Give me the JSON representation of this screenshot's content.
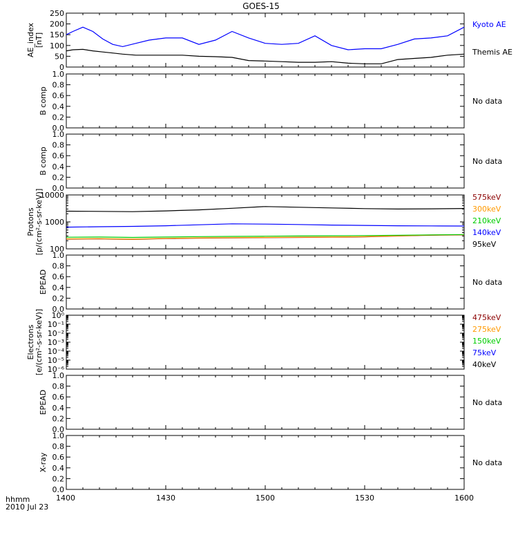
{
  "title": "GOES-15",
  "time_axis": {
    "ticks": [
      "1400",
      "1430",
      "1500",
      "1530",
      "1600"
    ],
    "corner_label_1": "hhmm",
    "corner_label_2": "2010 Jul 23"
  },
  "chart_data": [
    {
      "type": "line",
      "ylabel": "AE_index\n[nT]",
      "ylim": [
        0,
        250
      ],
      "yscale": "linear",
      "yticks": [
        "0",
        "50",
        "100",
        "150",
        "200",
        "250"
      ],
      "x": [
        0,
        2,
        5,
        8,
        11,
        14,
        17,
        21,
        25,
        30,
        35,
        40,
        45,
        50,
        55,
        60,
        65,
        70,
        75,
        80,
        85,
        90,
        95,
        100,
        105,
        110,
        115,
        120
      ],
      "series": [
        {
          "name": "Kyoto AE",
          "color": "#0000ff",
          "values": [
            150,
            165,
            185,
            165,
            130,
            105,
            95,
            110,
            125,
            135,
            135,
            105,
            125,
            165,
            135,
            110,
            105,
            110,
            145,
            100,
            80,
            85,
            85,
            105,
            130,
            135,
            145,
            185
          ]
        },
        {
          "name": "Themis AE",
          "color": "#000000",
          "values": [
            75,
            80,
            82,
            75,
            70,
            65,
            60,
            55,
            55,
            55,
            55,
            50,
            48,
            45,
            30,
            28,
            25,
            22,
            22,
            25,
            18,
            15,
            15,
            35,
            40,
            45,
            55,
            60
          ]
        }
      ]
    },
    {
      "type": "line",
      "ylabel": "B comp",
      "ylim": [
        0,
        1
      ],
      "yscale": "linear",
      "yticks": [
        "0.0",
        "0.2",
        "0.4",
        "0.6",
        "0.8",
        "1.0"
      ],
      "series": [],
      "note": "No data"
    },
    {
      "type": "line",
      "ylabel": "B comp",
      "ylim": [
        0,
        1
      ],
      "yscale": "linear",
      "yticks": [
        "0.0",
        "0.2",
        "0.4",
        "0.6",
        "0.8",
        "1.0"
      ],
      "series": [],
      "note": "No data"
    },
    {
      "type": "line",
      "ylabel": "Protons\n[p/(cm²-s-sr-keV)]",
      "ylim": [
        100,
        10000
      ],
      "yscale": "log",
      "yticks": [
        "100",
        "1000",
        "10000"
      ],
      "x": [
        0,
        10,
        20,
        30,
        40,
        50,
        60,
        70,
        80,
        90,
        100,
        110,
        120
      ],
      "series": [
        {
          "name": "575keV",
          "color": "#8b0000",
          "values": [
            230,
            235,
            225,
            240,
            250,
            255,
            260,
            265,
            270,
            280,
            300,
            320,
            330
          ]
        },
        {
          "name": "300keV",
          "color": "#ff9900",
          "values": [
            235,
            240,
            230,
            245,
            255,
            260,
            265,
            270,
            275,
            285,
            305,
            325,
            335
          ]
        },
        {
          "name": "210keV",
          "color": "#00cc00",
          "values": [
            270,
            275,
            265,
            275,
            285,
            290,
            295,
            300,
            305,
            310,
            320,
            330,
            340
          ]
        },
        {
          "name": "140keV",
          "color": "#0000ff",
          "values": [
            640,
            660,
            680,
            720,
            780,
            850,
            830,
            800,
            760,
            740,
            720,
            710,
            700
          ]
        },
        {
          "name": "95keV",
          "color": "#000000",
          "values": [
            2500,
            2450,
            2400,
            2550,
            2800,
            3200,
            3700,
            3500,
            3300,
            3100,
            3000,
            3050,
            3150
          ]
        }
      ]
    },
    {
      "type": "line",
      "ylabel": "EPEAD",
      "ylim": [
        0,
        1
      ],
      "yscale": "linear",
      "yticks": [
        "0.0",
        "0.2",
        "0.4",
        "0.6",
        "0.8",
        "1.0"
      ],
      "series": [],
      "note": "No data"
    },
    {
      "type": "line",
      "ylabel": "Electrons\n[e/(cm²-s-sr-keV)]",
      "ylim": [
        -6,
        0
      ],
      "yscale": "log",
      "yticks": [
        "10⁰",
        "10⁻¹",
        "10⁻²",
        "10⁻³",
        "10⁻⁴",
        "10⁻⁵",
        "10⁻⁶"
      ],
      "series": [
        {
          "name": "475keV",
          "color": "#8b0000",
          "values": []
        },
        {
          "name": "275keV",
          "color": "#ff9900",
          "values": []
        },
        {
          "name": "150keV",
          "color": "#00cc00",
          "values": []
        },
        {
          "name": "75keV",
          "color": "#0000ff",
          "values": []
        },
        {
          "name": "40keV",
          "color": "#000000",
          "values": []
        }
      ]
    },
    {
      "type": "line",
      "ylabel": "EPEAD",
      "ylim": [
        0,
        1
      ],
      "yscale": "linear",
      "yticks": [
        "0.0",
        "0.2",
        "0.4",
        "0.6",
        "0.8",
        "1.0"
      ],
      "series": [],
      "note": "No data"
    },
    {
      "type": "line",
      "ylabel": "X-ray",
      "ylim": [
        0,
        1
      ],
      "yscale": "linear",
      "yticks": [
        "0.0",
        "0.2",
        "0.4",
        "0.6",
        "0.8",
        "1.0"
      ],
      "series": [],
      "note": "No data"
    }
  ]
}
